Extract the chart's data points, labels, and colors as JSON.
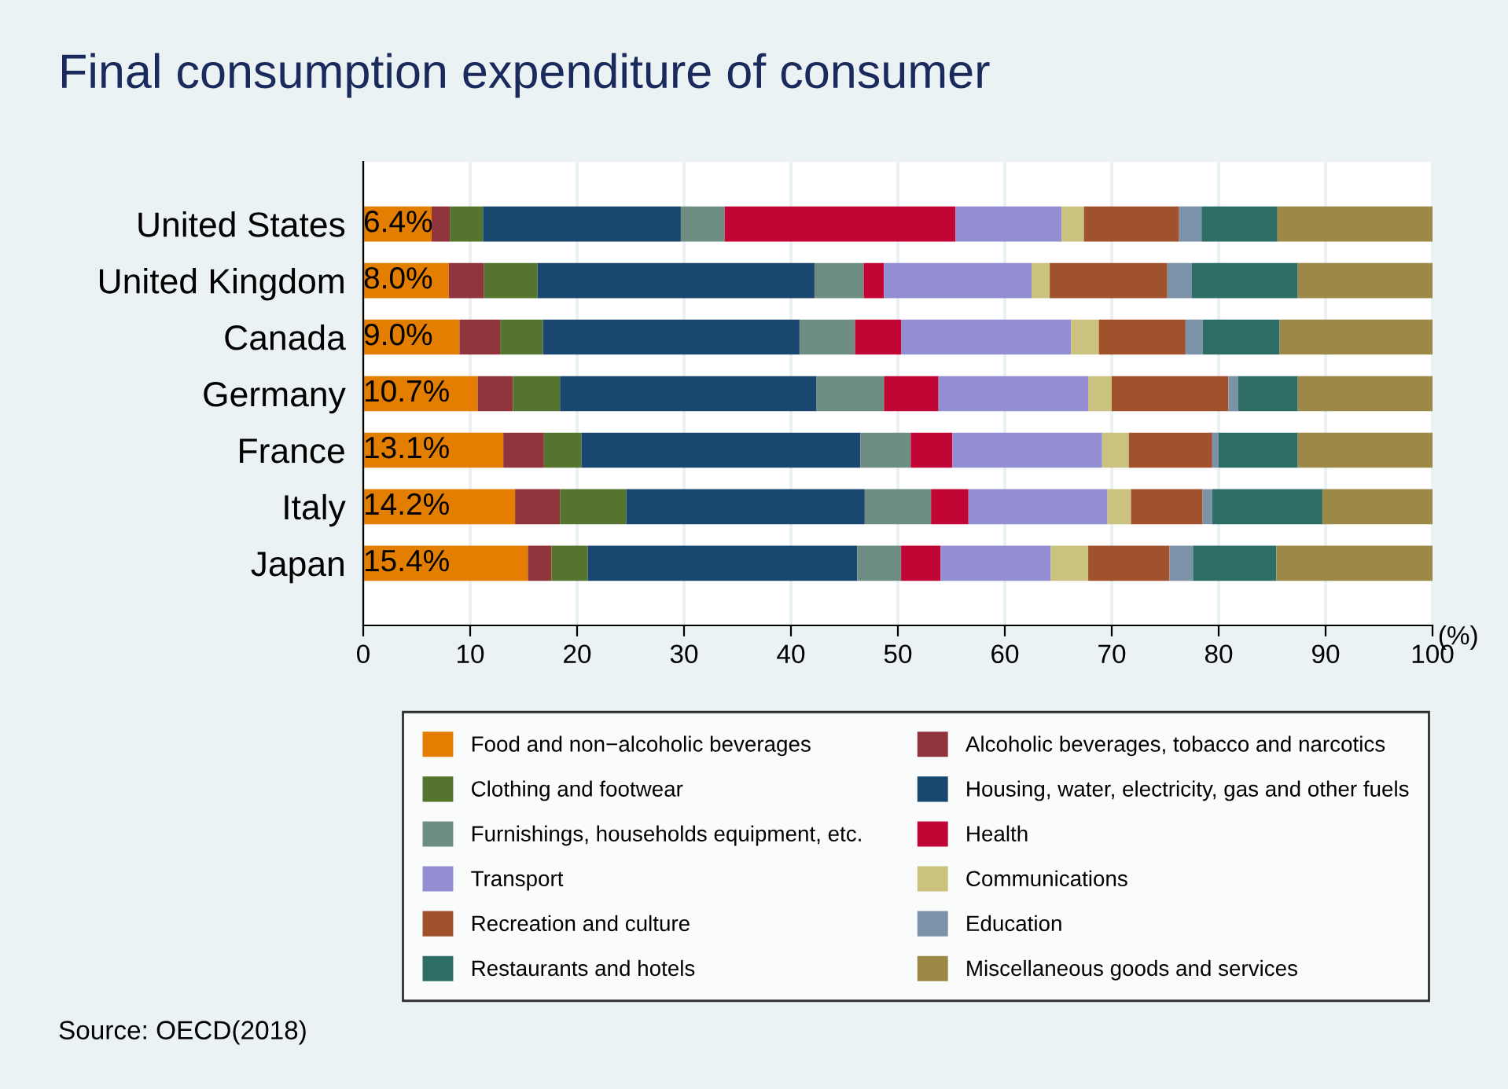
{
  "chart_data": {
    "type": "bar",
    "orientation": "horizontal",
    "stacked": true,
    "title": "Final consumption expenditure of consumer",
    "xlabel": "(%)",
    "categories": [
      "United States",
      "United Kingdom",
      "Canada",
      "Germany",
      "France",
      "Italy",
      "Japan"
    ],
    "series": [
      {
        "name": "Food and non−alcoholic beverages",
        "color": "#e37e00",
        "values": [
          6.4,
          8.0,
          9.0,
          10.7,
          13.1,
          14.2,
          15.4
        ],
        "value_labels": [
          "6.4%",
          "8.0%",
          "9.0%",
          "10.7%",
          "13.1%",
          "14.2%",
          "15.4%"
        ]
      },
      {
        "name": "Alcoholic beverages, tobacco and narcotics",
        "color": "#90353b",
        "values": [
          1.7,
          3.3,
          3.8,
          3.3,
          3.8,
          4.2,
          2.2
        ]
      },
      {
        "name": "Clothing and footwear",
        "color": "#55752f",
        "values": [
          3.1,
          5.0,
          4.0,
          4.4,
          3.5,
          6.2,
          3.4
        ]
      },
      {
        "name": "Housing, water, electricity, gas and other fuels",
        "color": "#1a476f",
        "values": [
          18.5,
          25.9,
          24.0,
          24.0,
          26.1,
          22.3,
          25.2
        ]
      },
      {
        "name": "Furnishings, households equipment, etc.",
        "color": "#6e8e84",
        "values": [
          4.1,
          4.6,
          5.2,
          6.3,
          4.7,
          6.2,
          4.1
        ]
      },
      {
        "name": "Health",
        "color": "#c10534",
        "values": [
          21.6,
          1.9,
          4.3,
          5.1,
          3.9,
          3.5,
          3.7
        ]
      },
      {
        "name": "Transport",
        "color": "#938dd2",
        "values": [
          9.9,
          13.8,
          15.9,
          14.0,
          14.0,
          13.0,
          10.3
        ]
      },
      {
        "name": "Communications",
        "color": "#cac27e",
        "values": [
          2.1,
          1.7,
          2.6,
          2.2,
          2.5,
          2.2,
          3.5
        ]
      },
      {
        "name": "Recreation and culture",
        "color": "#a0522d",
        "values": [
          8.9,
          11.0,
          8.1,
          10.9,
          7.8,
          6.7,
          7.6
        ]
      },
      {
        "name": "Education",
        "color": "#7b92a8",
        "values": [
          2.1,
          2.3,
          1.6,
          0.9,
          0.6,
          0.9,
          2.2
        ]
      },
      {
        "name": "Restaurants and hotels",
        "color": "#2d6d66",
        "values": [
          7.1,
          9.9,
          7.2,
          5.6,
          7.4,
          10.3,
          7.8
        ]
      },
      {
        "name": "Miscellaneous goods and services",
        "color": "#9c8847",
        "values": [
          14.5,
          12.6,
          14.3,
          12.6,
          12.6,
          10.3,
          14.6
        ]
      }
    ],
    "xlim": [
      0,
      100
    ],
    "xticks": [
      0,
      10,
      20,
      30,
      40,
      50,
      60,
      70,
      80,
      90,
      100
    ],
    "grid": "x",
    "legend": "bottom",
    "annotations": [
      "Source: OECD(2018)"
    ]
  }
}
